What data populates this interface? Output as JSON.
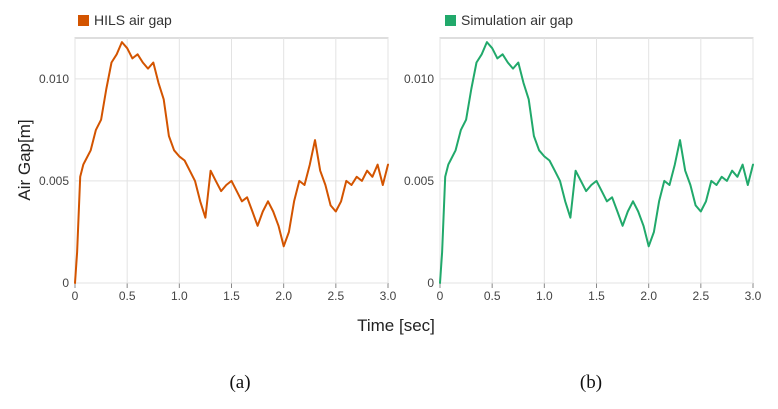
{
  "figure": {
    "ylabel": "Air Gap[m]",
    "xlabel": "Time [sec]"
  },
  "chart_data": [
    {
      "type": "line",
      "caption": "(a)",
      "xlim": [
        0,
        3.0
      ],
      "ylim": [
        0,
        0.012
      ],
      "x_ticks": [
        "0",
        "0.5",
        "1.0",
        "1.5",
        "2.0",
        "2.5",
        "3.0"
      ],
      "y_ticks": [
        "0",
        "0.005",
        "0.010"
      ],
      "grid": true,
      "legend_position": "top-left",
      "series": [
        {
          "name": "HILS air gap",
          "color": "#d35400",
          "x": [
            0,
            0.02,
            0.05,
            0.08,
            0.1,
            0.15,
            0.2,
            0.25,
            0.3,
            0.35,
            0.4,
            0.45,
            0.5,
            0.55,
            0.6,
            0.65,
            0.7,
            0.75,
            0.8,
            0.85,
            0.9,
            0.95,
            1.0,
            1.05,
            1.1,
            1.15,
            1.2,
            1.25,
            1.3,
            1.35,
            1.4,
            1.45,
            1.5,
            1.55,
            1.6,
            1.65,
            1.7,
            1.75,
            1.8,
            1.85,
            1.9,
            1.95,
            2.0,
            2.05,
            2.1,
            2.15,
            2.2,
            2.25,
            2.3,
            2.35,
            2.4,
            2.45,
            2.5,
            2.55,
            2.6,
            2.65,
            2.7,
            2.75,
            2.8,
            2.85,
            2.9,
            2.95,
            3.0
          ],
          "y": [
            0,
            0.0015,
            0.0052,
            0.0058,
            0.006,
            0.0065,
            0.0075,
            0.008,
            0.0095,
            0.0108,
            0.0112,
            0.0118,
            0.0115,
            0.011,
            0.0112,
            0.0108,
            0.0105,
            0.0108,
            0.0098,
            0.009,
            0.0072,
            0.0065,
            0.0062,
            0.006,
            0.0055,
            0.005,
            0.004,
            0.0032,
            0.0055,
            0.005,
            0.0045,
            0.0048,
            0.005,
            0.0045,
            0.004,
            0.0042,
            0.0035,
            0.0028,
            0.0035,
            0.004,
            0.0035,
            0.0028,
            0.0018,
            0.0025,
            0.004,
            0.005,
            0.0048,
            0.0058,
            0.007,
            0.0055,
            0.0048,
            0.0038,
            0.0035,
            0.004,
            0.005,
            0.0048,
            0.0052,
            0.005,
            0.0055,
            0.0052,
            0.0058,
            0.0048,
            0.0058
          ]
        }
      ]
    },
    {
      "type": "line",
      "caption": "(b)",
      "xlim": [
        0,
        3.0
      ],
      "ylim": [
        0,
        0.012
      ],
      "x_ticks": [
        "0",
        "0.5",
        "1.0",
        "1.5",
        "2.0",
        "2.5",
        "3.0"
      ],
      "y_ticks": [
        "0",
        "0.005",
        "0.010"
      ],
      "grid": true,
      "legend_position": "top-left",
      "series": [
        {
          "name": "Simulation air gap",
          "color": "#21a96b",
          "x": [
            0,
            0.02,
            0.05,
            0.08,
            0.1,
            0.15,
            0.2,
            0.25,
            0.3,
            0.35,
            0.4,
            0.45,
            0.5,
            0.55,
            0.6,
            0.65,
            0.7,
            0.75,
            0.8,
            0.85,
            0.9,
            0.95,
            1.0,
            1.05,
            1.1,
            1.15,
            1.2,
            1.25,
            1.3,
            1.35,
            1.4,
            1.45,
            1.5,
            1.55,
            1.6,
            1.65,
            1.7,
            1.75,
            1.8,
            1.85,
            1.9,
            1.95,
            2.0,
            2.05,
            2.1,
            2.15,
            2.2,
            2.25,
            2.3,
            2.35,
            2.4,
            2.45,
            2.5,
            2.55,
            2.6,
            2.65,
            2.7,
            2.75,
            2.8,
            2.85,
            2.9,
            2.95,
            3.0
          ],
          "y": [
            0,
            0.0015,
            0.0052,
            0.0058,
            0.006,
            0.0065,
            0.0075,
            0.008,
            0.0095,
            0.0108,
            0.0112,
            0.0118,
            0.0115,
            0.011,
            0.0112,
            0.0108,
            0.0105,
            0.0108,
            0.0098,
            0.009,
            0.0072,
            0.0065,
            0.0062,
            0.006,
            0.0055,
            0.005,
            0.004,
            0.0032,
            0.0055,
            0.005,
            0.0045,
            0.0048,
            0.005,
            0.0045,
            0.004,
            0.0042,
            0.0035,
            0.0028,
            0.0035,
            0.004,
            0.0035,
            0.0028,
            0.0018,
            0.0025,
            0.004,
            0.005,
            0.0048,
            0.0058,
            0.007,
            0.0055,
            0.0048,
            0.0038,
            0.0035,
            0.004,
            0.005,
            0.0048,
            0.0052,
            0.005,
            0.0055,
            0.0052,
            0.0058,
            0.0048,
            0.0058
          ]
        }
      ]
    }
  ]
}
